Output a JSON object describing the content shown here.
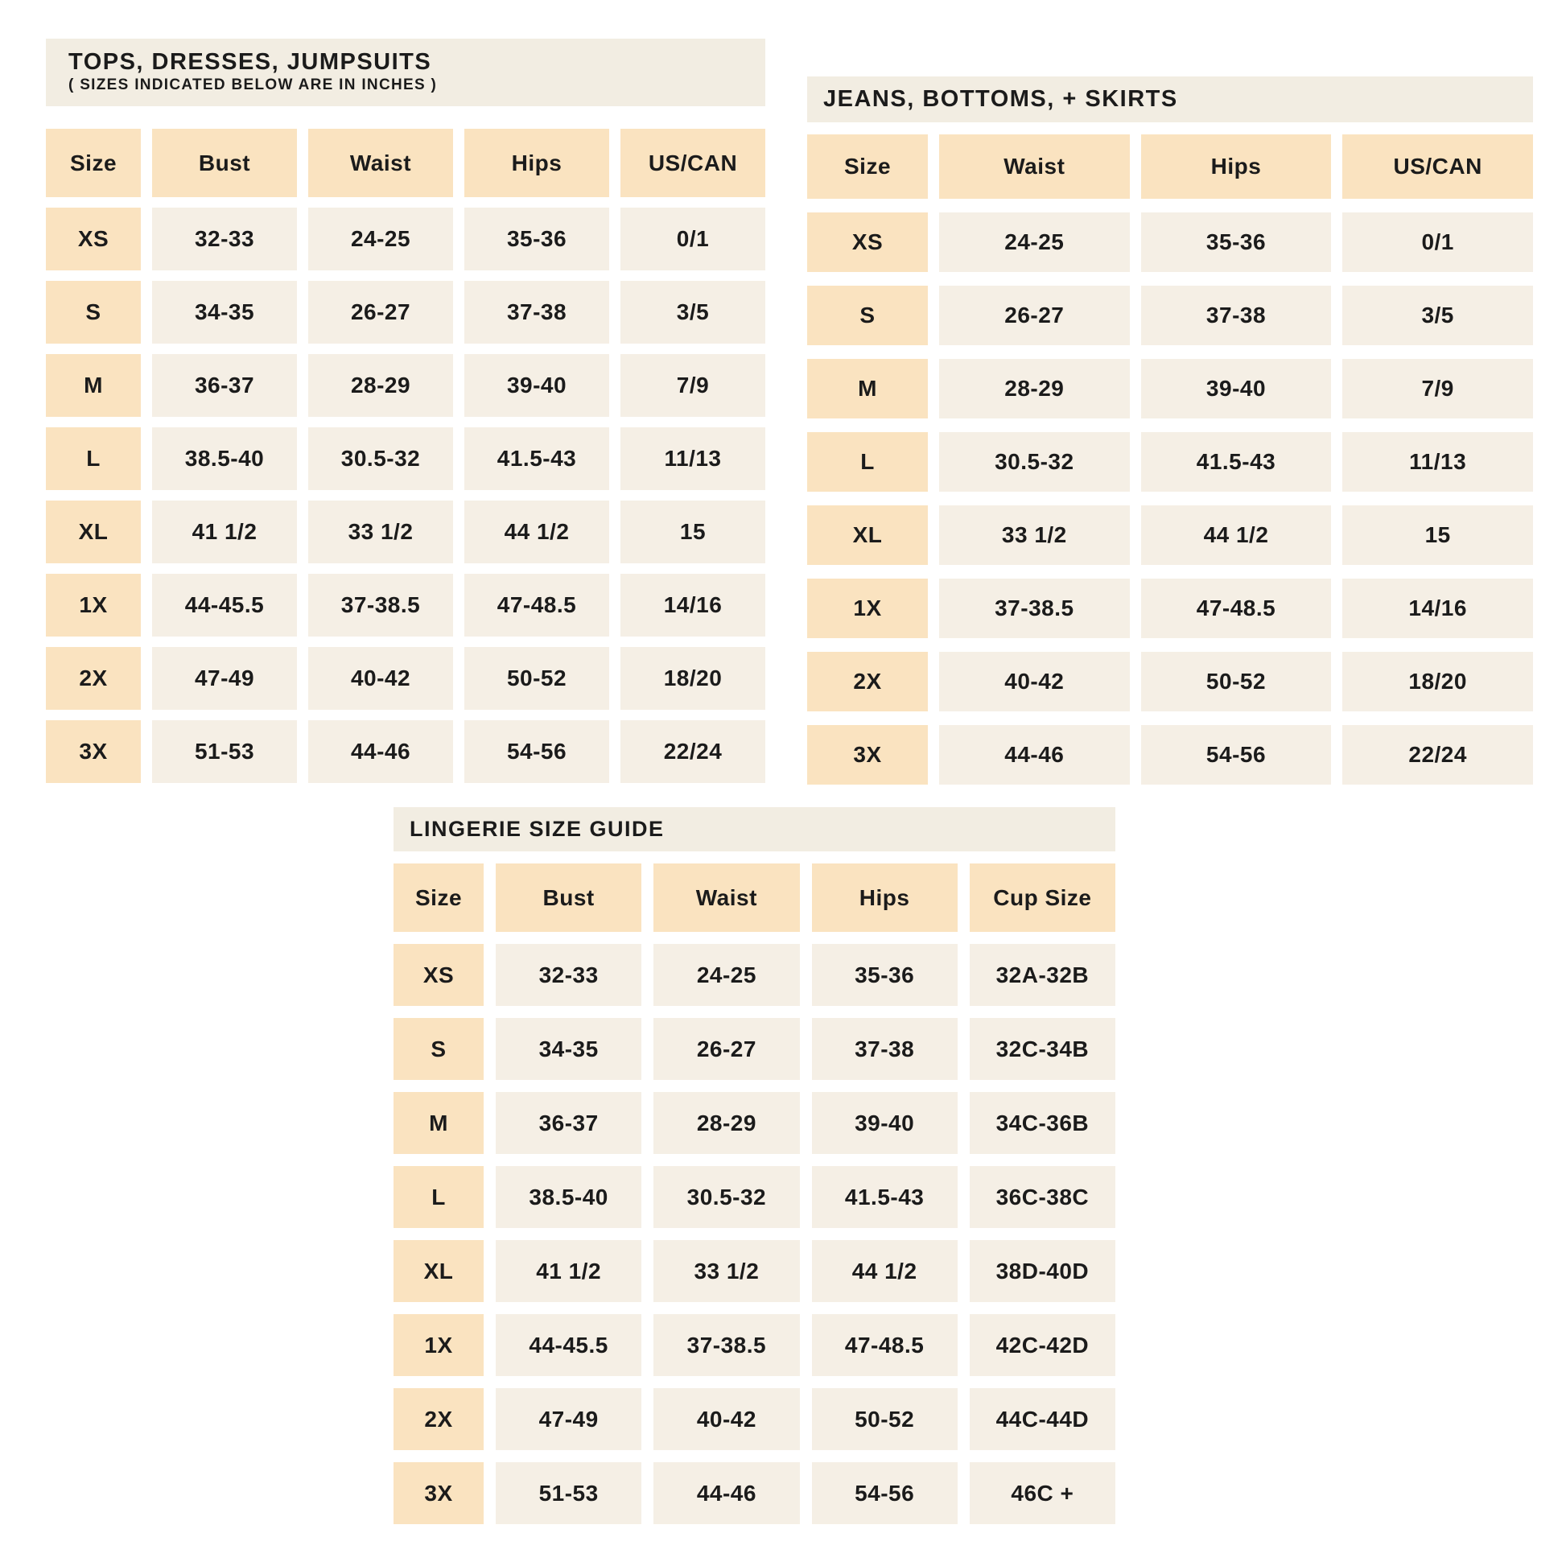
{
  "page": {
    "background": "#FFFFFF"
  },
  "colors": {
    "header_cell": "#FAE3C0",
    "data_cell": "#F5EFE5",
    "title_bar": "#F2EDE2",
    "text": "#1B1B1B"
  },
  "tables": [
    {
      "id": "tops-dresses-jumpsuits",
      "title": "TOPS, DRESSES, JUMPSUITS",
      "subtitle": "( SIZES INDICATED BELOW ARE IN INCHES )",
      "columns": [
        "Size",
        "Bust",
        "Waist",
        "Hips",
        "US/CAN"
      ],
      "rows": [
        [
          "XS",
          "32-33",
          "24-25",
          "35-36",
          "0/1"
        ],
        [
          "S",
          "34-35",
          "26-27",
          "37-38",
          "3/5"
        ],
        [
          "M",
          "36-37",
          "28-29",
          "39-40",
          "7/9"
        ],
        [
          "L",
          "38.5-40",
          "30.5-32",
          "41.5-43",
          "11/13"
        ],
        [
          "XL",
          "41 1/2",
          "33 1/2",
          "44 1/2",
          "15"
        ],
        [
          "1X",
          "44-45.5",
          "37-38.5",
          "47-48.5",
          "14/16"
        ],
        [
          "2X",
          "47-49",
          "40-42",
          "50-52",
          "18/20"
        ],
        [
          "3X",
          "51-53",
          "44-46",
          "54-56",
          "22/24"
        ]
      ]
    },
    {
      "id": "jeans-bottoms-skirts",
      "title": "JEANS, BOTTOMS, + SKIRTS",
      "subtitle": "",
      "columns": [
        "Size",
        "Waist",
        "Hips",
        "US/CAN"
      ],
      "rows": [
        [
          "XS",
          "24-25",
          "35-36",
          "0/1"
        ],
        [
          "S",
          "26-27",
          "37-38",
          "3/5"
        ],
        [
          "M",
          "28-29",
          "39-40",
          "7/9"
        ],
        [
          "L",
          "30.5-32",
          "41.5-43",
          "11/13"
        ],
        [
          "XL",
          "33 1/2",
          "44 1/2",
          "15"
        ],
        [
          "1X",
          "37-38.5",
          "47-48.5",
          "14/16"
        ],
        [
          "2X",
          "40-42",
          "50-52",
          "18/20"
        ],
        [
          "3X",
          "44-46",
          "54-56",
          "22/24"
        ]
      ]
    },
    {
      "id": "lingerie-size-guide",
      "title": "LINGERIE SIZE GUIDE",
      "subtitle": "",
      "columns": [
        "Size",
        "Bust",
        "Waist",
        "Hips",
        "Cup Size"
      ],
      "rows": [
        [
          "XS",
          "32-33",
          "24-25",
          "35-36",
          "32A-32B"
        ],
        [
          "S",
          "34-35",
          "26-27",
          "37-38",
          "32C-34B"
        ],
        [
          "M",
          "36-37",
          "28-29",
          "39-40",
          "34C-36B"
        ],
        [
          "L",
          "38.5-40",
          "30.5-32",
          "41.5-43",
          "36C-38C"
        ],
        [
          "XL",
          "41 1/2",
          "33 1/2",
          "44 1/2",
          "38D-40D"
        ],
        [
          "1X",
          "44-45.5",
          "37-38.5",
          "47-48.5",
          "42C-42D"
        ],
        [
          "2X",
          "47-49",
          "40-42",
          "50-52",
          "44C-44D"
        ],
        [
          "3X",
          "51-53",
          "44-46",
          "54-56",
          "46C +"
        ]
      ]
    }
  ]
}
